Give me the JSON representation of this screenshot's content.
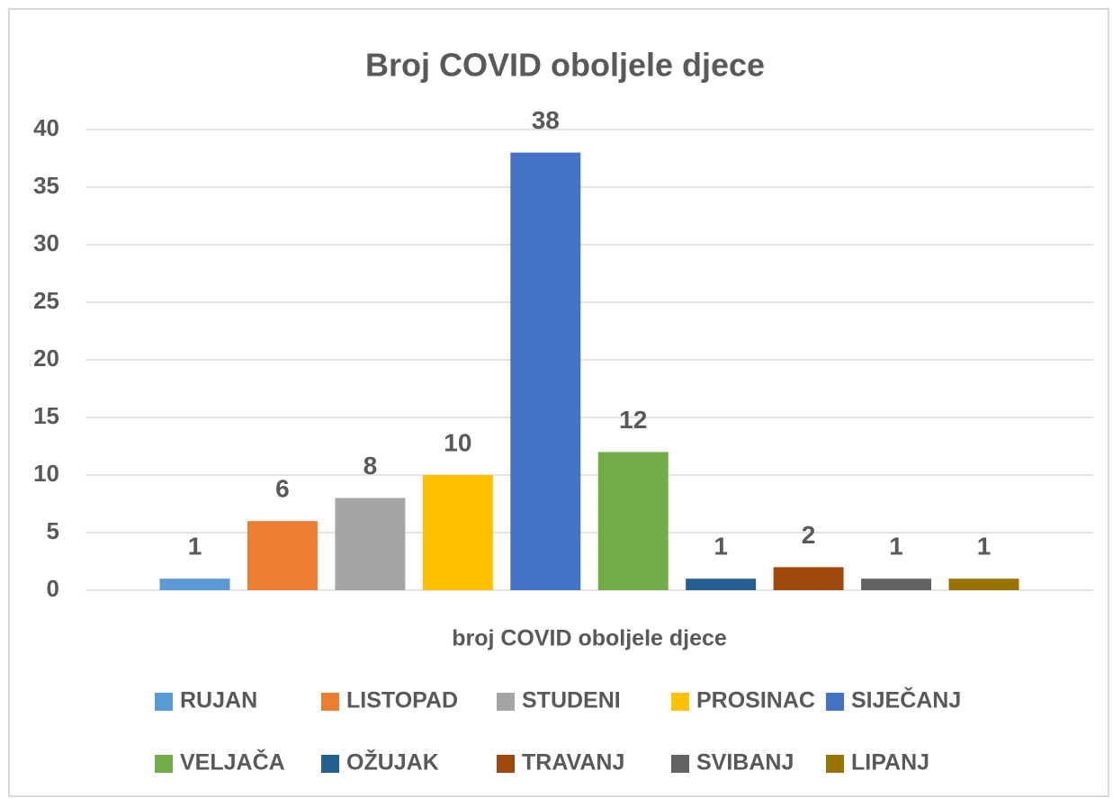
{
  "chart_data": {
    "type": "bar",
    "title": "Broj COVID oboljele djece",
    "categories": [
      "broj COVID oboljele djece"
    ],
    "series": [
      {
        "name": "RUJAN",
        "color": "#5b9bd5",
        "values": [
          1
        ]
      },
      {
        "name": "LISTOPAD",
        "color": "#ed7d31",
        "values": [
          6
        ]
      },
      {
        "name": "STUDENI",
        "color": "#a5a5a5",
        "values": [
          8
        ]
      },
      {
        "name": "PROSINAC",
        "color": "#ffc000",
        "values": [
          10
        ]
      },
      {
        "name": "SIJEČANJ",
        "color": "#4472c4",
        "values": [
          38
        ]
      },
      {
        "name": "VELJAČA",
        "color": "#70ad47",
        "values": [
          12
        ]
      },
      {
        "name": "OŽUJAK",
        "color": "#255e91",
        "values": [
          1
        ]
      },
      {
        "name": "TRAVANJ",
        "color": "#9e480e",
        "values": [
          2
        ]
      },
      {
        "name": "SVIBANJ",
        "color": "#636363",
        "values": [
          1
        ]
      },
      {
        "name": "LIPANJ",
        "color": "#997300",
        "values": [
          1
        ]
      }
    ],
    "ylim": [
      0,
      40
    ],
    "yticks": [
      0,
      5,
      10,
      15,
      20,
      25,
      30,
      35,
      40
    ],
    "grid": true,
    "legend": "bottom"
  }
}
